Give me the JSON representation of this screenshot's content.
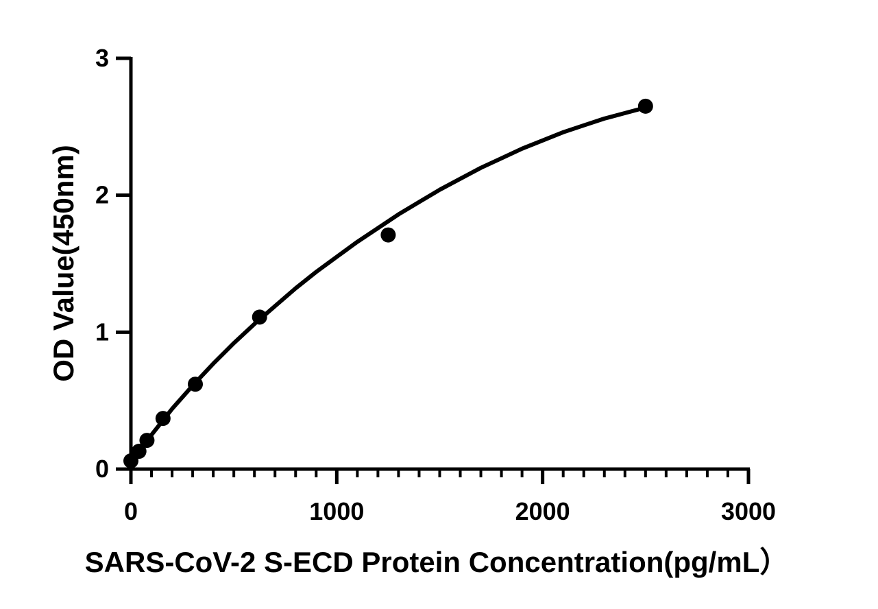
{
  "chart_data": {
    "type": "scatter",
    "xlabel": "SARS-CoV-2 S-ECD Protein Concentration(pg/mL）",
    "ylabel": "OD Value(450nm)",
    "xlim": [
      0,
      3000
    ],
    "ylim": [
      0,
      3
    ],
    "x_ticks": [
      0,
      1000,
      2000,
      3000
    ],
    "y_ticks": [
      0,
      1,
      2,
      3
    ],
    "x_minor_step": 100,
    "grid": false,
    "legend": "none",
    "colors": {
      "marks": "#000000"
    },
    "series": [
      {
        "points": [
          {
            "x": 0,
            "y": 0.06
          },
          {
            "x": 39,
            "y": 0.13
          },
          {
            "x": 78,
            "y": 0.21
          },
          {
            "x": 156,
            "y": 0.37
          },
          {
            "x": 313,
            "y": 0.62
          },
          {
            "x": 625,
            "y": 1.11
          },
          {
            "x": 1250,
            "y": 1.71
          },
          {
            "x": 2500,
            "y": 2.65
          }
        ],
        "fit_curve": {
          "x": [
            0,
            50,
            100,
            200,
            300,
            400,
            500,
            600,
            700,
            800,
            900,
            1000,
            1100,
            1200,
            1300,
            1400,
            1500,
            1600,
            1700,
            1800,
            1900,
            2000,
            2100,
            2200,
            2300,
            2400,
            2500
          ],
          "y": [
            0.05,
            0.15,
            0.25,
            0.44,
            0.61,
            0.77,
            0.92,
            1.06,
            1.19,
            1.32,
            1.44,
            1.55,
            1.66,
            1.76,
            1.86,
            1.95,
            2.04,
            2.12,
            2.2,
            2.27,
            2.34,
            2.4,
            2.46,
            2.51,
            2.56,
            2.6,
            2.64
          ]
        }
      }
    ]
  }
}
